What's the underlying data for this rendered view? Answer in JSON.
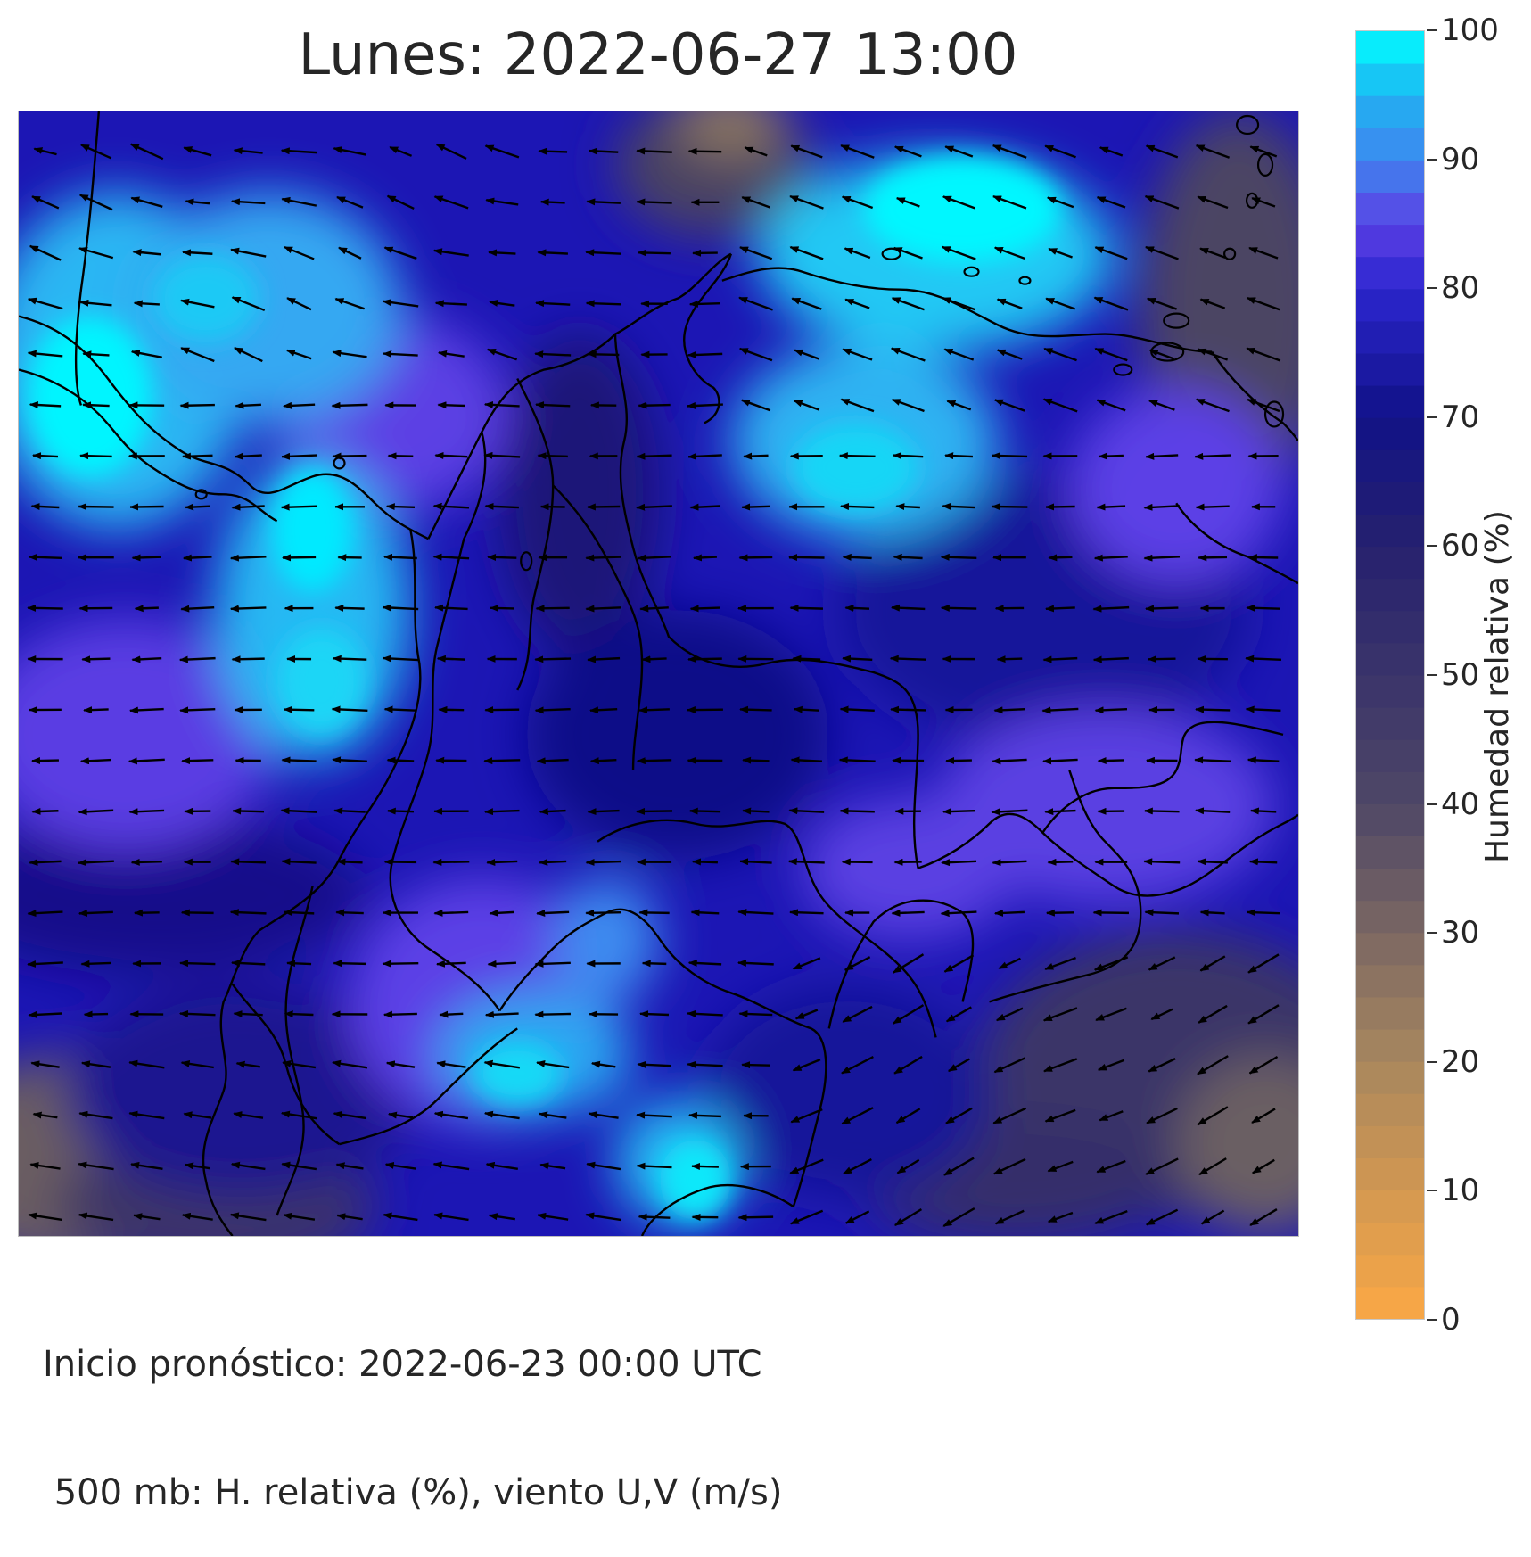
{
  "title": "Lunes: 2022-06-27 13:00",
  "footer": {
    "line1": "Inicio pronóstico: 2022-06-23 00:00 UTC",
    "line2": " 500 mb: H. relativa (%), viento U,V (m/s)"
  },
  "colorbar": {
    "label": "Humedad relativa (%)",
    "ticks": [
      0,
      10,
      20,
      30,
      40,
      50,
      60,
      70,
      80,
      90,
      100
    ],
    "tick_labels": [
      "0",
      "10",
      "20",
      "30",
      "40",
      "50",
      "60",
      "70",
      "80",
      "90",
      "100"
    ],
    "range": [
      0,
      100
    ],
    "colors": {
      "0": "#fba845",
      "20": "#a8875e",
      "40": "#4e4766",
      "60": "#26216e",
      "70": "#111287",
      "80": "#2b25ce",
      "85": "#5b3fe4",
      "90": "#3f86ef",
      "95": "#1fb3f2",
      "100": "#00ffff"
    }
  },
  "map": {
    "variable": "Humedad relativa 500 mb",
    "wind_arrows": "black",
    "coastline_color": "#000000"
  }
}
